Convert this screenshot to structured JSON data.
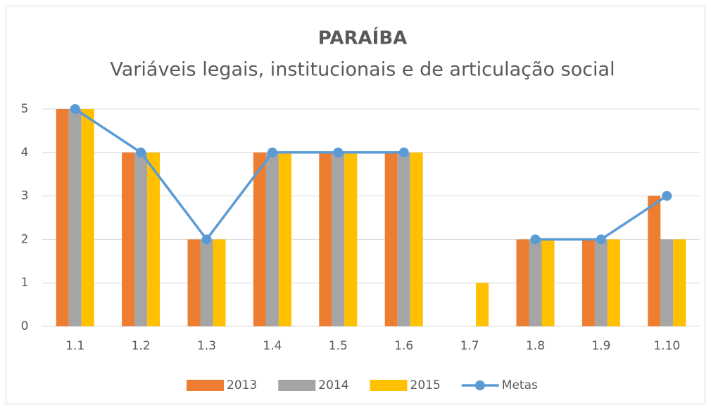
{
  "chart_data": {
    "type": "bar",
    "title": "PARAÍBA",
    "subtitle": "Variáveis legais, institucionais e de articulação social",
    "categories": [
      "1.1",
      "1.2",
      "1.3",
      "1.4",
      "1.5",
      "1.6",
      "1.7",
      "1.8",
      "1.9",
      "1.10"
    ],
    "series": [
      {
        "name": "2013",
        "type": "bar",
        "color": "#ED7D31",
        "values": [
          5,
          4,
          2,
          4,
          4,
          4,
          0,
          2,
          2,
          3
        ]
      },
      {
        "name": "2014",
        "type": "bar",
        "color": "#A5A5A5",
        "values": [
          5,
          4,
          2,
          4,
          4,
          4,
          0,
          2,
          2,
          2
        ]
      },
      {
        "name": "2015",
        "type": "bar",
        "color": "#FFC000",
        "values": [
          5,
          4,
          2,
          4,
          4,
          4,
          1,
          2,
          2,
          2
        ]
      },
      {
        "name": "Metas",
        "type": "line",
        "color": "#5B9BD5",
        "values": [
          5,
          4,
          2,
          4,
          4,
          4,
          null,
          2,
          2,
          3
        ]
      }
    ],
    "ylim": [
      0,
      5
    ],
    "yticks": [
      0,
      1,
      2,
      3,
      4,
      5
    ],
    "grid": true,
    "legend": "bottom"
  }
}
